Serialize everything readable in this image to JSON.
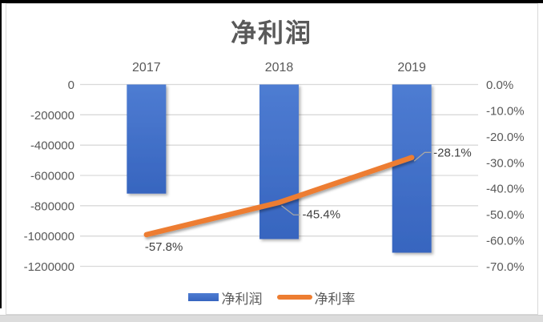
{
  "chart_data": {
    "type": "combo",
    "title": "净利润",
    "categories": [
      "2017",
      "2018",
      "2019"
    ],
    "series": [
      {
        "name": "净利润",
        "chart_type": "bar",
        "axis": "left",
        "values": [
          -720000,
          -1020000,
          -1110000
        ],
        "color": "#4472C4"
      },
      {
        "name": "净利率",
        "chart_type": "line",
        "axis": "right",
        "values": [
          -57.8,
          -45.4,
          -28.1
        ],
        "point_labels": [
          "-57.8%",
          "-45.4%",
          "-28.1%"
        ],
        "color": "#ED7D31"
      }
    ],
    "left_axis": {
      "min": -1200000,
      "max": 0,
      "tick_step": 200000,
      "tick_labels": [
        "0",
        "-200000",
        "-400000",
        "-600000",
        "-800000",
        "-1000000",
        "-1200000"
      ]
    },
    "right_axis": {
      "min": -70,
      "max": 0,
      "tick_step": 10,
      "tick_labels": [
        "0.0%",
        "-10.0%",
        "-20.0%",
        "-30.0%",
        "-40.0%",
        "-50.0%",
        "-60.0%",
        "-70.0%"
      ]
    },
    "gridlines": true,
    "legend_position": "bottom"
  },
  "colors": {
    "bar_fill": "#4472C4",
    "bar_gradient_top": "#4E7CD2",
    "bar_gradient_bottom": "#3765BF",
    "line": "#ED7D31",
    "gridline": "#D9D9D9",
    "axis_text": "#595959",
    "title_text": "#595959",
    "data_label_text": "#404040",
    "leader_line": "#A6A6A6",
    "frame_edge": "#000000",
    "bottom_strip": "#DCDCDC"
  }
}
